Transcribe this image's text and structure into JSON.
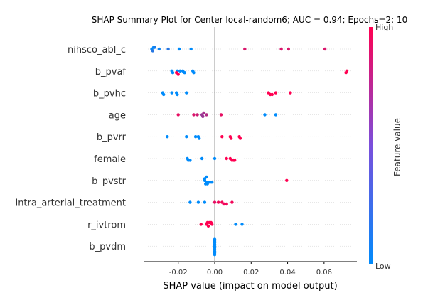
{
  "chart_data": {
    "type": "scatter",
    "title": "SHAP Summary Plot for Center local-random6; AUC = 0.94; Epochs=2; 10",
    "xlabel": "SHAP value (impact on model output)",
    "xlim": [
      -0.039,
      0.078
    ],
    "x_ticks": [
      "-0.02",
      "0.00",
      "0.02",
      "0.04",
      "0.06"
    ],
    "x_tick_values": [
      -0.02,
      0.0,
      0.02,
      0.04,
      0.06
    ],
    "colorbar": {
      "label": "Feature value",
      "high": "High",
      "low": "Low",
      "low_color": "#008bfb",
      "high_color": "#ff0051"
    },
    "features": [
      {
        "name": "nihsco_abl_c",
        "points": [
          [
            -0.0345,
            0.0
          ],
          [
            -0.034,
            0.15
          ],
          [
            -0.0335,
            0.0
          ],
          [
            -0.033,
            0.1
          ],
          [
            -0.0305,
            0.05
          ],
          [
            -0.0255,
            0.15
          ],
          [
            -0.0195,
            0.0
          ],
          [
            -0.013,
            0.0
          ],
          [
            0.0165,
            0.85
          ],
          [
            0.0365,
            0.85
          ],
          [
            0.0405,
            0.85
          ],
          [
            0.0605,
            0.85
          ]
        ]
      },
      {
        "name": "b_pvaf",
        "points": [
          [
            -0.0235,
            0.0
          ],
          [
            -0.023,
            0.0
          ],
          [
            -0.0205,
            0.0
          ],
          [
            -0.019,
            0.0
          ],
          [
            -0.0175,
            0.0
          ],
          [
            -0.0165,
            0.0
          ],
          [
            -0.012,
            0.0
          ],
          [
            -0.0115,
            0.0
          ],
          [
            -0.021,
            1.0
          ],
          [
            -0.02,
            1.0
          ],
          [
            0.0725,
            1.0
          ],
          [
            0.072,
            1.0
          ]
        ]
      },
      {
        "name": "b_pvhc",
        "points": [
          [
            -0.0285,
            0.0
          ],
          [
            -0.028,
            0.0
          ],
          [
            -0.0235,
            0.0
          ],
          [
            -0.021,
            0.0
          ],
          [
            -0.0205,
            0.0
          ],
          [
            -0.0155,
            0.0
          ],
          [
            0.0295,
            1.0
          ],
          [
            0.0305,
            1.0
          ],
          [
            0.0315,
            1.0
          ],
          [
            0.0335,
            1.0
          ],
          [
            0.0415,
            1.0
          ]
        ]
      },
      {
        "name": "age",
        "points": [
          [
            -0.02,
            0.9
          ],
          [
            -0.0115,
            0.85
          ],
          [
            -0.0095,
            0.8
          ],
          [
            -0.007,
            0.6
          ],
          [
            -0.0065,
            0.6
          ],
          [
            -0.006,
            0.65
          ],
          [
            -0.0045,
            0.7
          ],
          [
            0.0035,
            0.9
          ],
          [
            0.0275,
            0.0
          ],
          [
            0.0335,
            0.0
          ]
        ]
      },
      {
        "name": "b_pvrr",
        "points": [
          [
            -0.026,
            0.0
          ],
          [
            -0.0155,
            0.0
          ],
          [
            -0.0105,
            0.0
          ],
          [
            -0.009,
            0.0
          ],
          [
            -0.0085,
            0.0
          ],
          [
            0.004,
            1.0
          ],
          [
            0.0085,
            1.0
          ],
          [
            0.009,
            1.0
          ],
          [
            0.0135,
            1.0
          ],
          [
            0.014,
            1.0
          ]
        ]
      },
      {
        "name": "female",
        "points": [
          [
            -0.015,
            0.0
          ],
          [
            -0.0145,
            0.0
          ],
          [
            -0.0135,
            0.0
          ],
          [
            -0.007,
            0.0
          ],
          [
            0.0,
            0.0
          ],
          [
            0.0065,
            1.0
          ],
          [
            0.0085,
            1.0
          ],
          [
            0.0095,
            1.0
          ],
          [
            0.0105,
            1.0
          ],
          [
            0.011,
            1.0
          ]
        ]
      },
      {
        "name": "b_pvstr",
        "points": [
          [
            -0.0055,
            0.0
          ],
          [
            -0.0045,
            0.0
          ],
          [
            -0.0055,
            0.0
          ],
          [
            -0.005,
            0.0
          ],
          [
            -0.0045,
            0.0
          ],
          [
            -0.004,
            0.0
          ],
          [
            -0.003,
            0.0
          ],
          [
            -0.002,
            0.0
          ],
          [
            -0.0015,
            0.0
          ],
          [
            0.0395,
            1.0
          ]
        ]
      },
      {
        "name": "intra_arterial_treatment",
        "points": [
          [
            -0.0135,
            0.0
          ],
          [
            -0.009,
            0.0
          ],
          [
            -0.0055,
            0.0
          ],
          [
            0.0,
            0.9
          ],
          [
            0.002,
            0.95
          ],
          [
            0.004,
            0.95
          ],
          [
            0.005,
            0.95
          ],
          [
            0.0055,
            0.95
          ],
          [
            0.0065,
            0.95
          ],
          [
            0.0095,
            0.95
          ]
        ]
      },
      {
        "name": "r_ivtrom",
        "points": [
          [
            -0.0075,
            1.0
          ],
          [
            -0.0045,
            1.0
          ],
          [
            -0.0035,
            1.0
          ],
          [
            -0.004,
            1.0
          ],
          [
            -0.003,
            1.0
          ],
          [
            -0.0015,
            1.0
          ],
          [
            -0.002,
            1.0
          ],
          [
            0.0115,
            0.0
          ],
          [
            0.015,
            0.0
          ]
        ]
      },
      {
        "name": "b_pvdm",
        "points": [
          [
            0.0,
            0.0
          ],
          [
            0.0,
            0.0
          ],
          [
            0.0,
            0.0
          ],
          [
            0.0,
            0.0
          ],
          [
            0.0,
            0.0
          ],
          [
            0.0,
            0.0
          ],
          [
            0.0,
            0.0
          ],
          [
            0.0,
            0.0
          ],
          [
            0.0,
            0.0
          ],
          [
            0.0,
            0.0
          ]
        ]
      }
    ]
  }
}
